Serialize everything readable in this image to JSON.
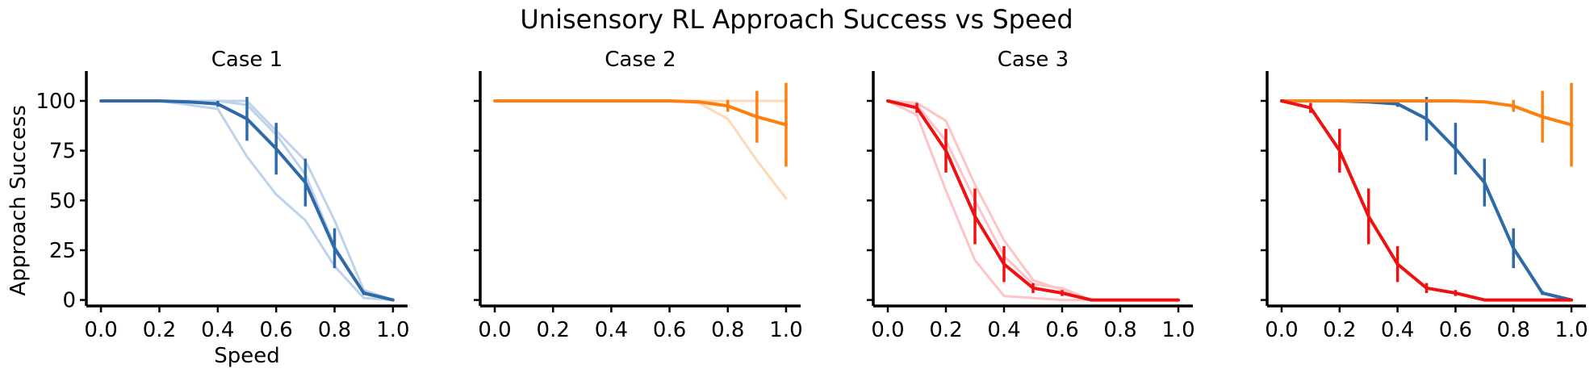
{
  "title": "Unisensory RL Approach Success vs Speed",
  "colors": {
    "case1": "#2f6aa8",
    "case2": "#ff7f0e",
    "case3": "#ee1111"
  },
  "chart_data": [
    {
      "type": "line",
      "title": "Case 1",
      "xlabel": "Speed",
      "ylabel": "Approach Success",
      "xlim": [
        -0.05,
        1.05
      ],
      "ylim": [
        -3,
        115
      ],
      "xticks": [
        "0.0",
        "0.2",
        "0.4",
        "0.6",
        "0.8",
        "1.0"
      ],
      "yticks": [
        "0",
        "25",
        "50",
        "75",
        "100"
      ],
      "x": [
        0.0,
        0.1,
        0.2,
        0.3,
        0.4,
        0.5,
        0.6,
        0.7,
        0.8,
        0.9,
        1.0
      ],
      "series": [
        {
          "color": "#2f6aa8",
          "values": [
            100,
            100,
            100,
            99.5,
            98.5,
            91,
            76,
            59,
            26,
            3.5,
            0
          ],
          "error": [
            0,
            0,
            0,
            0,
            1.5,
            11,
            13,
            12,
            10,
            1,
            0
          ]
        }
      ],
      "faint_series": [
        {
          "color": "#bed3ea",
          "values": [
            100,
            100,
            100,
            98,
            96,
            72,
            53,
            40,
            17,
            1,
            0
          ]
        },
        {
          "color": "#bed3ea",
          "values": [
            100,
            100,
            100,
            100,
            100,
            98,
            83,
            63,
            27,
            3,
            0
          ]
        },
        {
          "color": "#bed3ea",
          "values": [
            100,
            100,
            100,
            100,
            100,
            100,
            85,
            70,
            40,
            5,
            0
          ]
        }
      ]
    },
    {
      "type": "line",
      "title": "Case 2",
      "xlabel": "",
      "ylabel": "",
      "xlim": [
        -0.05,
        1.05
      ],
      "ylim": [
        -3,
        115
      ],
      "xticks": [
        "0.0",
        "0.2",
        "0.4",
        "0.6",
        "0.8",
        "1.0"
      ],
      "yticks": [
        "0",
        "25",
        "50",
        "75",
        "100"
      ],
      "x": [
        0.0,
        0.1,
        0.2,
        0.3,
        0.4,
        0.5,
        0.6,
        0.7,
        0.8,
        0.9,
        1.0
      ],
      "series": [
        {
          "color": "#ff7f0e",
          "values": [
            100,
            100,
            100,
            100,
            100,
            100,
            100,
            99.5,
            97.5,
            92,
            88
          ],
          "error": [
            0,
            0,
            0,
            0,
            0,
            0,
            0,
            0,
            3,
            13,
            21
          ]
        }
      ],
      "faint_series": [
        {
          "color": "#ffd8b4",
          "values": [
            100,
            100,
            100,
            100,
            100,
            100,
            100,
            100,
            100,
            100,
            100
          ]
        },
        {
          "color": "#ffd8b4",
          "values": [
            100,
            100,
            100,
            100,
            100,
            100,
            100,
            99,
            91,
            70,
            51
          ]
        }
      ]
    },
    {
      "type": "line",
      "title": "Case 3",
      "xlabel": "",
      "ylabel": "",
      "xlim": [
        -0.05,
        1.05
      ],
      "ylim": [
        -3,
        115
      ],
      "xticks": [
        "0.0",
        "0.2",
        "0.4",
        "0.6",
        "0.8",
        "1.0"
      ],
      "yticks": [
        "0",
        "25",
        "50",
        "75",
        "100"
      ],
      "x": [
        0.0,
        0.1,
        0.2,
        0.3,
        0.4,
        0.5,
        0.6,
        0.7,
        0.8,
        0.9,
        1.0
      ],
      "series": [
        {
          "color": "#ee1111",
          "values": [
            100,
            96.5,
            75,
            42,
            18,
            6,
            3.5,
            0,
            0,
            0,
            0
          ],
          "error": [
            0,
            2.5,
            11,
            14,
            9,
            2.5,
            1.5,
            0,
            0,
            0,
            0
          ]
        }
      ],
      "faint_series": [
        {
          "color": "#ffc4c8",
          "values": [
            100,
            93,
            55,
            20,
            2,
            1,
            0,
            0,
            0,
            0,
            0
          ]
        },
        {
          "color": "#ffc4c8",
          "values": [
            100,
            98,
            80,
            50,
            22,
            8,
            6,
            0,
            0,
            0,
            0
          ]
        },
        {
          "color": "#ffc4c8",
          "values": [
            100,
            99,
            90,
            58,
            30,
            10,
            5,
            0,
            0,
            0,
            0
          ]
        }
      ]
    },
    {
      "type": "line",
      "title": "",
      "xlabel": "",
      "ylabel": "",
      "xlim": [
        -0.05,
        1.05
      ],
      "ylim": [
        -3,
        115
      ],
      "xticks": [
        "0.0",
        "0.2",
        "0.4",
        "0.6",
        "0.8",
        "1.0"
      ],
      "yticks": [
        "0",
        "25",
        "50",
        "75",
        "100"
      ],
      "x": [
        0.0,
        0.1,
        0.2,
        0.3,
        0.4,
        0.5,
        0.6,
        0.7,
        0.8,
        0.9,
        1.0
      ],
      "series": [
        {
          "color": "#2f6aa8",
          "values": [
            100,
            100,
            100,
            99.5,
            98.5,
            91,
            76,
            59,
            26,
            3.5,
            0
          ],
          "error": [
            0,
            0,
            0,
            0,
            1.5,
            11,
            13,
            12,
            10,
            1,
            0
          ]
        },
        {
          "color": "#ff7f0e",
          "values": [
            100,
            100,
            100,
            100,
            100,
            100,
            100,
            99.5,
            97.5,
            92,
            88
          ],
          "error": [
            0,
            0,
            0,
            0,
            0,
            0,
            0,
            0,
            3,
            13,
            21
          ]
        },
        {
          "color": "#ee1111",
          "values": [
            100,
            96.5,
            75,
            42,
            18,
            6,
            3.5,
            0,
            0,
            0,
            0
          ],
          "error": [
            0,
            2.5,
            11,
            14,
            9,
            2.5,
            1.5,
            0,
            0,
            0,
            0
          ]
        }
      ],
      "faint_series": []
    }
  ]
}
